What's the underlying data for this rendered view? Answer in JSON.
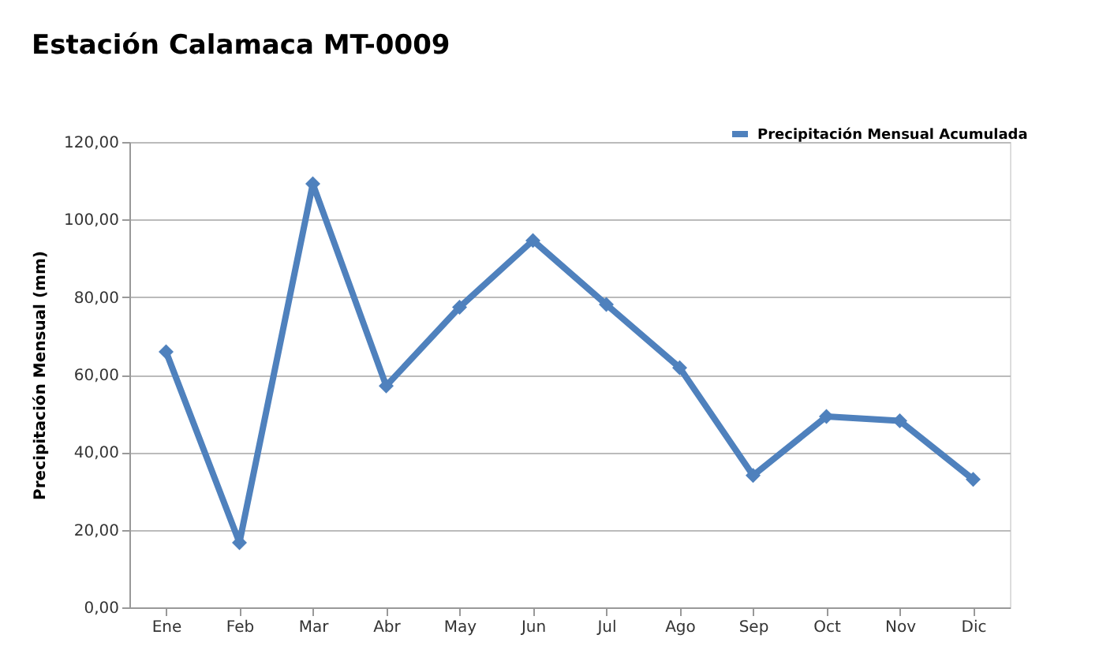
{
  "chart_data": {
    "type": "line",
    "title": "Estación Calamaca MT-0009",
    "ylabel": "Precipitación Mensual (mm)",
    "categories": [
      "Ene",
      "Feb",
      "Mar",
      "Abr",
      "May",
      "Jun",
      "Jul",
      "Ago",
      "Sep",
      "Oct",
      "Nov",
      "Dic"
    ],
    "series": [
      {
        "name": "Precipitación Mensual Acumulada",
        "color": "#4f81bd",
        "values": [
          65.9,
          16.7,
          109.2,
          57.1,
          77.4,
          94.6,
          78.1,
          61.8,
          34.0,
          49.2,
          48.1,
          33.0
        ]
      }
    ],
    "ylim": [
      0,
      120
    ],
    "yticks": [
      {
        "value": 0,
        "label": "0,00"
      },
      {
        "value": 20,
        "label": "20,00"
      },
      {
        "value": 40,
        "label": "40,00"
      },
      {
        "value": 60,
        "label": "60,00"
      },
      {
        "value": 80,
        "label": "80,00"
      },
      {
        "value": 100,
        "label": "100,00"
      },
      {
        "value": 120,
        "label": "120,00"
      }
    ],
    "grid": "y",
    "legend": "top right",
    "marker": "diamond",
    "line_style": "solid"
  }
}
